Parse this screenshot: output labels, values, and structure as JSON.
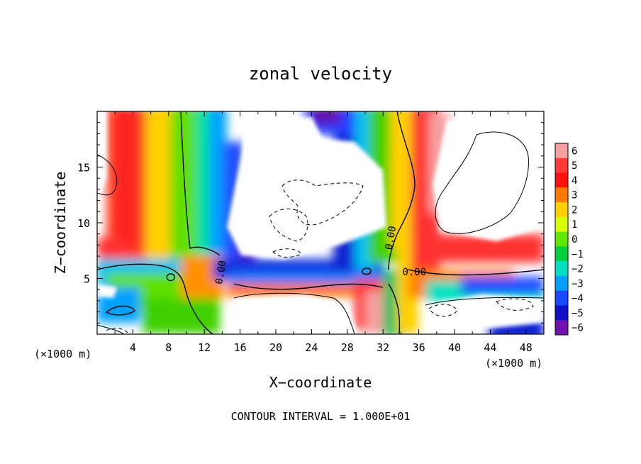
{
  "chart_data": {
    "type": "heatmap",
    "title": "zonal velocity",
    "xlabel": "X−coordinate",
    "ylabel": "Z−coordinate",
    "x_unit_left": "(×1000 m)",
    "x_unit_right": "(×1000 m)",
    "xlim": [
      0,
      50
    ],
    "ylim": [
      0,
      20
    ],
    "x_ticks": [
      4,
      8,
      12,
      16,
      20,
      24,
      28,
      32,
      36,
      40,
      44,
      48
    ],
    "y_ticks": [
      5,
      10,
      15
    ],
    "colorbar": {
      "levels": [
        6,
        5,
        4,
        3,
        2,
        1,
        0,
        -1,
        -2,
        -3,
        -4,
        -5,
        -6
      ],
      "labels": [
        "6",
        "5",
        "4",
        "3",
        "2",
        "1",
        "0",
        "−1",
        "−2",
        "−3",
        "−4",
        "−5",
        "−6"
      ],
      "colors": [
        "#f4a0a0",
        "#ff3838",
        "#ff1010",
        "#ff7a00",
        "#ffd000",
        "#d8ff00",
        "#60e800",
        "#00d040",
        "#00e0c0",
        "#00a0ff",
        "#1848ff",
        "#1010c8",
        "#7010b0"
      ],
      "range": [
        -6,
        6
      ]
    },
    "contour_labels": [
      {
        "text": "0.00",
        "x": 35.5,
        "z": 5.3
      },
      {
        "text": "0.00",
        "x": 33.2,
        "z": 8.6
      },
      {
        "text": "0.00",
        "x": 14.2,
        "z": 5.5
      }
    ],
    "contour_interval_text": "CONTOUR INTERVAL = 1.000E+01"
  }
}
